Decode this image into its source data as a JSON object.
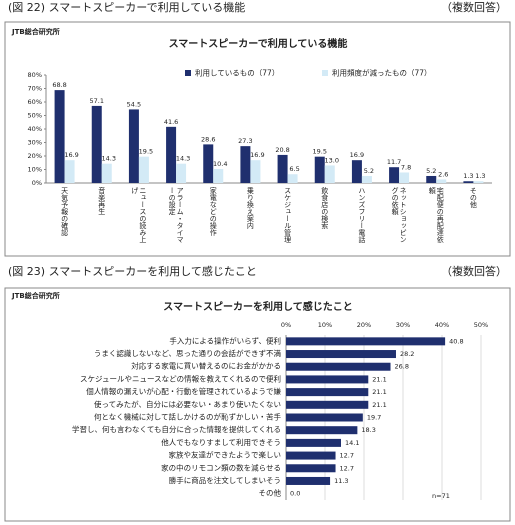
{
  "chart_data": [
    {
      "type": "bar",
      "caption": "(図 22) スマートスピーカーで利用している機能",
      "note": "（複数回答）",
      "source": "JTB総合研究所",
      "title": "スマートスピーカーで利用している機能",
      "categories": [
        "天気予報の確認",
        "音楽再生",
        "ニュースの読み上げ",
        "アラーム・タイマーの設定",
        "家電などの操作",
        "乗り換え案内",
        "スケジュール管理",
        "飲食店の検索",
        "ハンズフリー電話",
        "ネットショッピングの依頼",
        "宅配便の再配達依頼",
        "その他"
      ],
      "series": [
        {
          "name": "利用しているもの（77）",
          "color": "#1f2f6e",
          "values": [
            68.8,
            57.1,
            54.5,
            41.6,
            28.6,
            27.3,
            20.8,
            19.5,
            16.9,
            11.7,
            5.2,
            1.3
          ]
        },
        {
          "name": "利用頻度が減ったもの（77）",
          "color": "#d3eaf6",
          "values": [
            16.9,
            14.3,
            19.5,
            14.3,
            10.4,
            16.9,
            6.5,
            13.0,
            5.2,
            7.8,
            2.6,
            1.3
          ],
          "value_labels": [
            "16.9",
            "14.3",
            "19.5",
            "14.3",
            "10.4",
            "16.9",
            "6.5",
            "13.0",
            "5.2",
            "7.8",
            "2.6",
            "1.3"
          ]
        }
      ],
      "ylim": [
        0,
        80
      ],
      "yticks": [
        {
          "value": 0,
          "label": "0%"
        },
        {
          "value": 10,
          "label": "10%"
        },
        {
          "value": 20,
          "label": "20%"
        },
        {
          "value": 30,
          "label": "30%"
        },
        {
          "value": 40,
          "label": "40%"
        },
        {
          "value": 50,
          "label": "50%"
        },
        {
          "value": 60,
          "label": "60%"
        },
        {
          "value": 70,
          "label": "70%"
        },
        {
          "value": 80,
          "label": "80%"
        }
      ],
      "legend": "top"
    },
    {
      "type": "barh",
      "caption": "(図 23) スマートスピーカーを利用して感じたこと",
      "note": "（複数回答）",
      "source": "JTB総合研究所",
      "title": "スマートスピーカーを利用して感じたこと",
      "categories": [
        "手入力による操作がいらず、便利",
        "うまく認識しないなど、思った通りの会話ができず不満",
        "対応する家電に買い替えるのにお金がかかる",
        "スケジュールやニュースなどの情報を教えてくれるので便利",
        "個人情報の漏えいが心配・行動を管理されているようで嫌",
        "使ってみたが、自分には必要ない・あまり使いたくない",
        "何となく機械に対して話しかけるのが恥ずかしい・苦手",
        "学習し、何も言わなくても自分に合った情報を提供してくれる",
        "他人でもなりすまして利用できそう",
        "家族や友達ができたようで楽しい",
        "家の中のリモコン類の数を減らせる",
        "勝手に商品を注文してしまいそう",
        "その他"
      ],
      "values": [
        40.8,
        28.2,
        26.8,
        21.1,
        21.1,
        21.1,
        19.7,
        18.3,
        14.1,
        12.7,
        12.7,
        11.3,
        0.0
      ],
      "value_labels": [
        "40.8",
        "28.2",
        "26.8",
        "21.1",
        "21.1",
        "21.1",
        "19.7",
        "18.3",
        "14.1",
        "12.7",
        "12.7",
        "11.3",
        "0.0"
      ],
      "color": "#1f2f6e",
      "xlim": [
        0,
        50
      ],
      "xticks": [
        {
          "value": 0,
          "label": "0%"
        },
        {
          "value": 10,
          "label": "10%"
        },
        {
          "value": 20,
          "label": "20%"
        },
        {
          "value": 30,
          "label": "30%"
        },
        {
          "value": 40,
          "label": "40%"
        },
        {
          "value": 50,
          "label": "50%"
        }
      ],
      "annotation": "n=71"
    }
  ]
}
